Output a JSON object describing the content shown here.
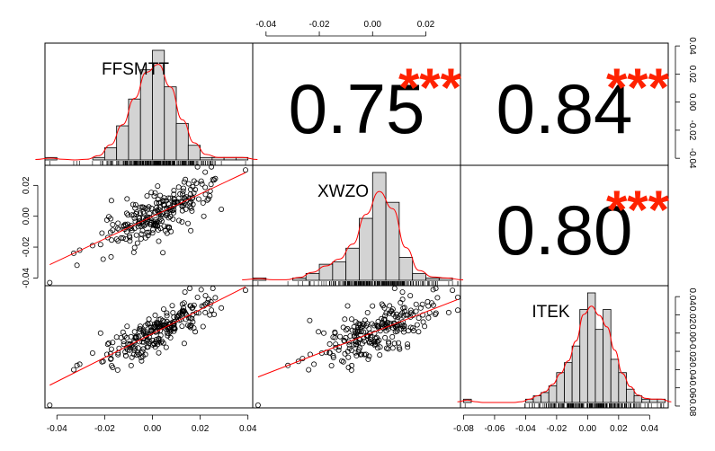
{
  "chart_data": {
    "type": "scatter-matrix",
    "variables": [
      "FFSMTT",
      "XWZO",
      "ITEK"
    ],
    "correlations": [
      {
        "pair": [
          "FFSMTT",
          "XWZO"
        ],
        "value": "0.75",
        "stars": "***"
      },
      {
        "pair": [
          "FFSMTT",
          "ITEK"
        ],
        "value": "0.84",
        "stars": "***"
      },
      {
        "pair": [
          "XWZO",
          "ITEK"
        ],
        "value": "0.80",
        "stars": "***"
      }
    ],
    "axes": {
      "FFSMTT": {
        "range": [
          -0.045,
          0.042
        ],
        "ticks": [
          -0.04,
          -0.02,
          0.0,
          0.02,
          0.04
        ],
        "tick_labels": [
          "-0.04",
          "-0.02",
          "0.00",
          "0.02",
          "0.04"
        ]
      },
      "XWZO": {
        "range": [
          -0.045,
          0.033
        ],
        "ticks": [
          -0.04,
          -0.02,
          0.0,
          0.02
        ],
        "tick_labels": [
          "-0.04",
          "-0.02",
          "0.00",
          "0.02"
        ]
      },
      "ITEK": {
        "range": [
          -0.082,
          0.052
        ],
        "ticks": [
          -0.08,
          -0.06,
          -0.04,
          -0.02,
          0.0,
          0.02,
          0.04
        ],
        "tick_labels": [
          "-0.08",
          "-0.06",
          "-0.04",
          "-0.02",
          "0.00",
          "0.02",
          "0.04"
        ]
      }
    },
    "histograms": {
      "FFSMTT": {
        "bins": [
          [
            -0.045,
            -0.04
          ],
          [
            -0.04,
            -0.035
          ],
          [
            -0.035,
            -0.03
          ],
          [
            -0.03,
            -0.025
          ],
          [
            -0.025,
            -0.02
          ],
          [
            -0.02,
            -0.015
          ],
          [
            -0.015,
            -0.01
          ],
          [
            -0.01,
            -0.005
          ],
          [
            -0.005,
            0.0
          ],
          [
            0.0,
            0.005
          ],
          [
            0.005,
            0.01
          ],
          [
            0.01,
            0.015
          ],
          [
            0.015,
            0.02
          ],
          [
            0.02,
            0.025
          ],
          [
            0.025,
            0.03
          ],
          [
            0.03,
            0.035
          ],
          [
            0.035,
            0.04
          ]
        ],
        "density": [
          1,
          0,
          0,
          0,
          1,
          5,
          14,
          25,
          37,
          45,
          30,
          15,
          6,
          1,
          1,
          1,
          1
        ]
      },
      "XWZO": {
        "bins": [
          [
            -0.045,
            -0.04
          ],
          [
            -0.04,
            -0.035
          ],
          [
            -0.035,
            -0.03
          ],
          [
            -0.03,
            -0.025
          ],
          [
            -0.025,
            -0.02
          ],
          [
            -0.02,
            -0.015
          ],
          [
            -0.015,
            -0.01
          ],
          [
            -0.01,
            -0.005
          ],
          [
            -0.005,
            0.0
          ],
          [
            0.0,
            0.005
          ],
          [
            0.005,
            0.01
          ],
          [
            0.01,
            0.015
          ],
          [
            0.015,
            0.02
          ],
          [
            0.02,
            0.025
          ],
          [
            0.025,
            0.03
          ]
        ],
        "density": [
          1,
          0,
          0,
          1,
          3,
          7,
          8,
          14,
          27,
          47,
          34,
          10,
          3,
          1,
          1
        ]
      },
      "ITEK": {
        "bins": [
          [
            -0.08,
            -0.075
          ],
          [
            -0.075,
            -0.07
          ],
          [
            -0.07,
            -0.065
          ],
          [
            -0.065,
            -0.06
          ],
          [
            -0.06,
            -0.055
          ],
          [
            -0.055,
            -0.05
          ],
          [
            -0.05,
            -0.045
          ],
          [
            -0.045,
            -0.04
          ],
          [
            -0.04,
            -0.035
          ],
          [
            -0.035,
            -0.03
          ],
          [
            -0.03,
            -0.025
          ],
          [
            -0.025,
            -0.02
          ],
          [
            -0.02,
            -0.015
          ],
          [
            -0.015,
            -0.01
          ],
          [
            -0.01,
            -0.005
          ],
          [
            -0.005,
            0.0
          ],
          [
            0.0,
            0.005
          ],
          [
            0.005,
            0.01
          ],
          [
            0.01,
            0.015
          ],
          [
            0.015,
            0.02
          ],
          [
            0.02,
            0.025
          ],
          [
            0.025,
            0.03
          ],
          [
            0.03,
            0.035
          ],
          [
            0.035,
            0.04
          ],
          [
            0.04,
            0.045
          ],
          [
            0.045,
            0.05
          ]
        ],
        "density": [
          1,
          0,
          0,
          0,
          0,
          0,
          0,
          0,
          1,
          2,
          3,
          5,
          9,
          12,
          17,
          28,
          33,
          22,
          28,
          13,
          9,
          4,
          2,
          1,
          1,
          1
        ]
      }
    },
    "density_color": "#ff0000",
    "star_color": "#ff2200"
  }
}
